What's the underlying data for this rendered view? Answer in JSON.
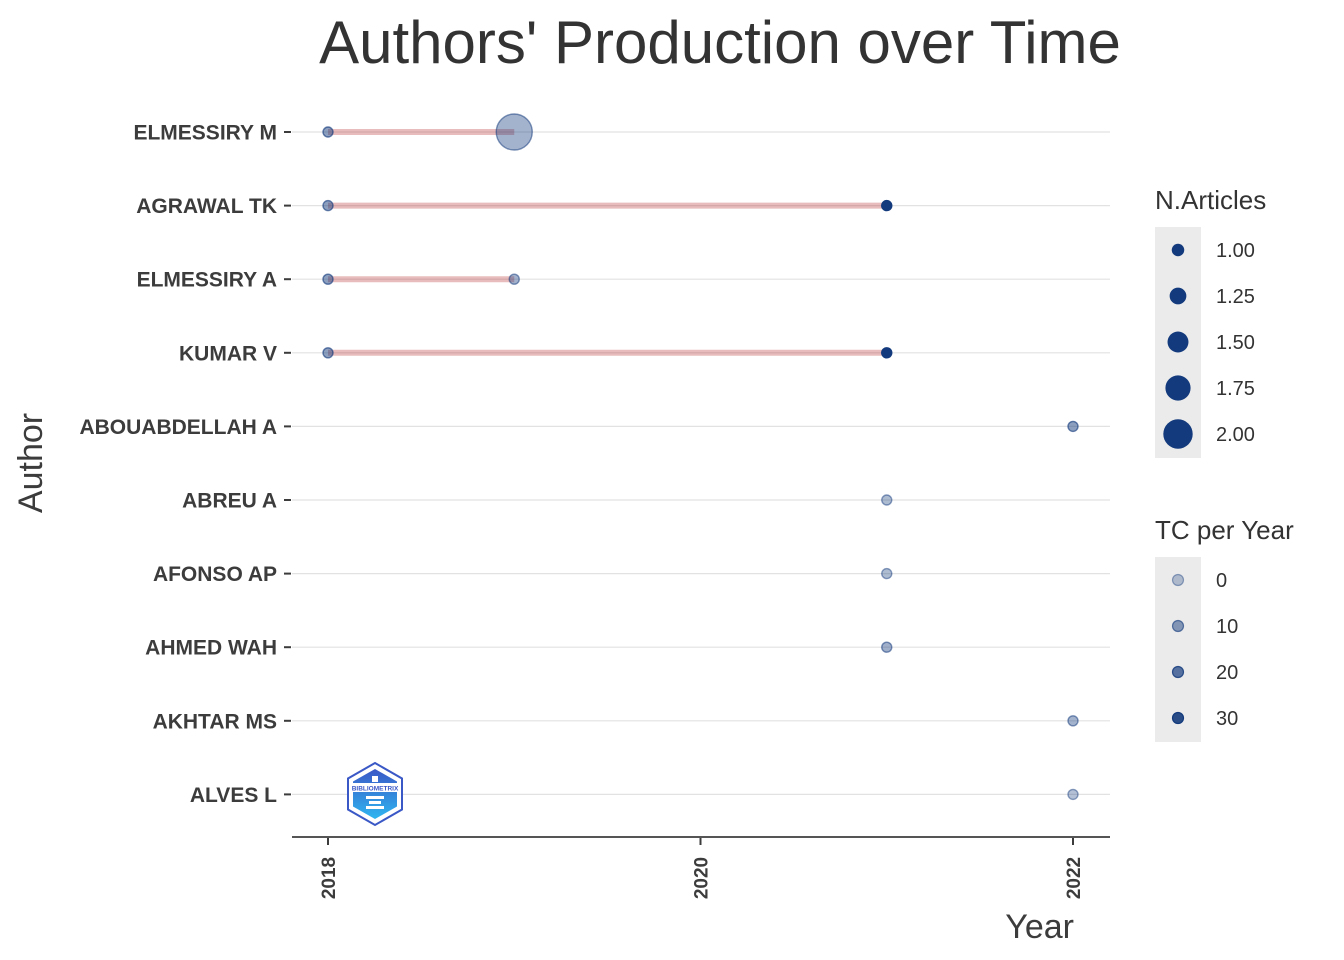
{
  "chart_data": {
    "type": "scatter",
    "title": "Authors' Production over Time",
    "xlabel": "Year",
    "ylabel": "Author",
    "xlim": [
      2017.9,
      2022.2
    ],
    "x_ticks": [
      2018,
      2020,
      2022
    ],
    "authors": [
      "ELMESSIRY M",
      "AGRAWAL TK",
      "ELMESSIRY A",
      "KUMAR V",
      "ABOUABDELLAH A",
      "ABREU A",
      "AFONSO AP",
      "AHMED WAH",
      "AKHTAR MS",
      "ALVES L"
    ],
    "timelines": [
      {
        "author": "ELMESSIRY M",
        "start": 2018,
        "end": 2019
      },
      {
        "author": "AGRAWAL TK",
        "start": 2018,
        "end": 2021
      },
      {
        "author": "ELMESSIRY A",
        "start": 2018,
        "end": 2019
      },
      {
        "author": "KUMAR V",
        "start": 2018,
        "end": 2021
      }
    ],
    "points": [
      {
        "author": "ELMESSIRY M",
        "year": 2018,
        "articles": 1,
        "tc_per_year": 10
      },
      {
        "author": "ELMESSIRY M",
        "year": 2019,
        "articles": 2,
        "tc_per_year": 5
      },
      {
        "author": "AGRAWAL TK",
        "year": 2018,
        "articles": 1,
        "tc_per_year": 10
      },
      {
        "author": "AGRAWAL TK",
        "year": 2021,
        "articles": 1,
        "tc_per_year": 35
      },
      {
        "author": "ELMESSIRY A",
        "year": 2018,
        "articles": 1,
        "tc_per_year": 10
      },
      {
        "author": "ELMESSIRY A",
        "year": 2019,
        "articles": 1,
        "tc_per_year": 5
      },
      {
        "author": "KUMAR V",
        "year": 2018,
        "articles": 1,
        "tc_per_year": 10
      },
      {
        "author": "KUMAR V",
        "year": 2021,
        "articles": 1,
        "tc_per_year": 35
      },
      {
        "author": "ABOUABDELLAH A",
        "year": 2022,
        "articles": 1,
        "tc_per_year": 10
      },
      {
        "author": "ABREU A",
        "year": 2021,
        "articles": 1,
        "tc_per_year": 3
      },
      {
        "author": "AFONSO AP",
        "year": 2021,
        "articles": 1,
        "tc_per_year": 3
      },
      {
        "author": "AHMED WAH",
        "year": 2021,
        "articles": 1,
        "tc_per_year": 6
      },
      {
        "author": "AKHTAR MS",
        "year": 2022,
        "articles": 1,
        "tc_per_year": 5
      },
      {
        "author": "ALVES L",
        "year": 2022,
        "articles": 1,
        "tc_per_year": 2
      }
    ],
    "legend_size": {
      "title": "N.Articles",
      "entries": [
        "1.00",
        "1.25",
        "1.50",
        "1.75",
        "2.00"
      ],
      "values": [
        1,
        1.25,
        1.5,
        1.75,
        2
      ]
    },
    "legend_color": {
      "title": "TC per Year",
      "entries": [
        "0",
        "10",
        "20",
        "30"
      ],
      "values": [
        0,
        10,
        20,
        30
      ]
    },
    "legend_placement": "right",
    "grid": "horizontal",
    "colors": {
      "point": "#133a7c",
      "timeline": "#b22222",
      "axis": "#555555",
      "grid": "#e2e2e2",
      "legend_bg": "#ebebeb"
    },
    "logo_text": "BIBLIOMETRIX"
  }
}
